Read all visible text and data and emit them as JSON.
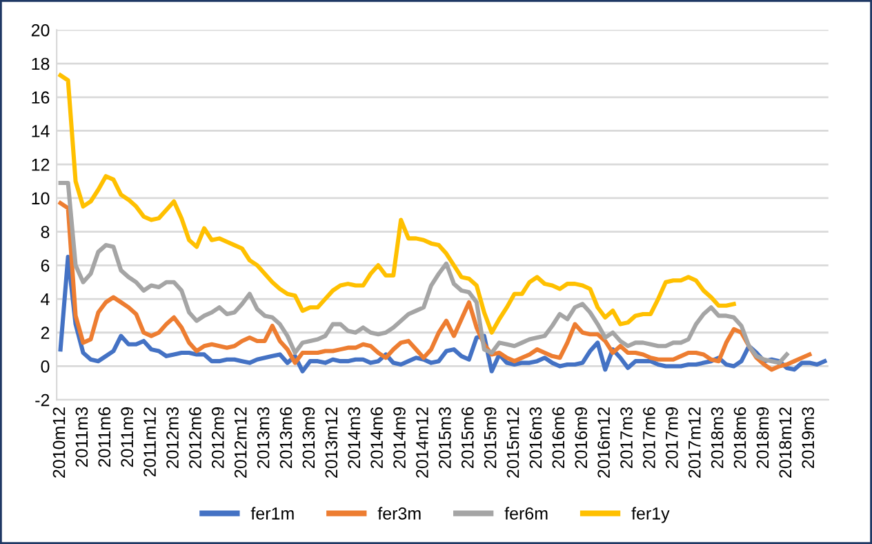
{
  "chart_data": {
    "type": "line",
    "categories": [
      "2010m12",
      null,
      null,
      "2011m3",
      null,
      null,
      "2011m6",
      null,
      null,
      "2011m9",
      null,
      null,
      "2011m12",
      null,
      null,
      "2012m3",
      null,
      null,
      "2012m6",
      null,
      null,
      "2012m9",
      null,
      null,
      "2012m12",
      null,
      null,
      "2013m3",
      null,
      null,
      "2013m6",
      null,
      null,
      "2013m9",
      null,
      null,
      "2013m12",
      null,
      null,
      "2014m3",
      null,
      null,
      "2014m6",
      null,
      null,
      "2014m9",
      null,
      null,
      "2014m12",
      null,
      null,
      "2015m3",
      null,
      null,
      "2015m6",
      null,
      null,
      "2015m9",
      null,
      null,
      "2015m12",
      null,
      null,
      "2016m3",
      null,
      null,
      "2016m6",
      null,
      null,
      "2016m9",
      null,
      null,
      "2016m12",
      null,
      null,
      "2017m3",
      null,
      null,
      "2017m6",
      null,
      null,
      "2017m9",
      null,
      null,
      "2017m12",
      null,
      null,
      "2018m3",
      null,
      null,
      "2018m6",
      null,
      null,
      "2018m9",
      null,
      null,
      "2018m12",
      null,
      null,
      "2019m3",
      null,
      null
    ],
    "series": [
      {
        "name": "fer1m",
        "color": "#4472c4",
        "values": [
          1.0,
          6.5,
          2.5,
          0.8,
          0.4,
          0.3,
          0.6,
          0.9,
          1.8,
          1.3,
          1.3,
          1.5,
          1.0,
          0.9,
          0.6,
          0.7,
          0.8,
          0.8,
          0.7,
          0.7,
          0.3,
          0.3,
          0.4,
          0.4,
          0.3,
          0.2,
          0.4,
          0.5,
          0.6,
          0.7,
          0.2,
          0.6,
          -0.3,
          0.3,
          0.3,
          0.2,
          0.4,
          0.3,
          0.3,
          0.4,
          0.4,
          0.2,
          0.3,
          0.7,
          0.2,
          0.1,
          0.3,
          0.5,
          0.4,
          0.2,
          0.3,
          0.9,
          1.0,
          0.6,
          0.4,
          1.7,
          1.8,
          -0.3,
          0.7,
          0.2,
          0.1,
          0.2,
          0.2,
          0.3,
          0.5,
          0.2,
          0.0,
          0.1,
          0.1,
          0.2,
          0.9,
          1.4,
          -0.2,
          1.0,
          0.5,
          -0.1,
          0.3,
          0.3,
          0.3,
          0.1,
          0.0,
          0.0,
          0.0,
          0.1,
          0.1,
          0.2,
          0.3,
          0.5,
          0.1,
          0.0,
          0.3,
          1.2,
          0.8,
          0.3,
          0.4,
          0.3,
          -0.1,
          -0.2,
          0.2,
          0.2,
          0.1,
          0.3
        ]
      },
      {
        "name": "fer3m",
        "color": "#ed7d31",
        "values": [
          9.7,
          9.4,
          3.0,
          1.4,
          1.6,
          3.2,
          3.8,
          4.1,
          3.8,
          3.5,
          3.1,
          2.0,
          1.8,
          2.0,
          2.5,
          2.9,
          2.3,
          1.4,
          0.9,
          1.2,
          1.3,
          1.2,
          1.1,
          1.2,
          1.5,
          1.7,
          1.5,
          1.5,
          2.4,
          1.5,
          1.0,
          0.2,
          0.8,
          0.8,
          0.8,
          0.9,
          0.9,
          1.0,
          1.1,
          1.1,
          1.3,
          1.2,
          0.8,
          0.5,
          1.0,
          1.4,
          1.5,
          1.0,
          0.5,
          1.0,
          2.0,
          2.7,
          1.8,
          2.8,
          3.8,
          2.3,
          1.3,
          0.7,
          0.8,
          0.5,
          0.3,
          0.5,
          0.7,
          1.0,
          0.8,
          0.6,
          0.5,
          1.4,
          2.5,
          2.0,
          1.9,
          1.9,
          1.5,
          0.8,
          1.2,
          0.8,
          0.8,
          0.7,
          0.5,
          0.4,
          0.4,
          0.4,
          0.6,
          0.8,
          0.8,
          0.7,
          0.4,
          0.3,
          1.4,
          2.2,
          2.0,
          1.2,
          0.5,
          0.1,
          -0.2,
          0.0,
          0.1,
          0.3,
          0.5,
          0.7,
          null,
          null
        ]
      },
      {
        "name": "fer6m",
        "color": "#a5a5a5",
        "values": [
          10.9,
          10.9,
          6.0,
          5.0,
          5.5,
          6.8,
          7.2,
          7.1,
          5.7,
          5.3,
          5.0,
          4.5,
          4.8,
          4.7,
          5.0,
          5.0,
          4.5,
          3.2,
          2.7,
          3.0,
          3.2,
          3.5,
          3.1,
          3.2,
          3.7,
          4.3,
          3.4,
          3.0,
          2.9,
          2.5,
          1.8,
          0.8,
          1.4,
          1.5,
          1.6,
          1.8,
          2.5,
          2.5,
          2.1,
          2.0,
          2.3,
          2.0,
          1.9,
          2.0,
          2.3,
          2.7,
          3.1,
          3.3,
          3.5,
          4.8,
          5.5,
          6.1,
          4.9,
          4.5,
          4.4,
          3.8,
          1.0,
          0.8,
          1.4,
          1.3,
          1.2,
          1.4,
          1.6,
          1.7,
          1.8,
          2.4,
          3.1,
          2.8,
          3.5,
          3.7,
          3.2,
          2.5,
          1.7,
          2.0,
          1.5,
          1.2,
          1.4,
          1.4,
          1.3,
          1.2,
          1.2,
          1.4,
          1.4,
          1.6,
          2.5,
          3.1,
          3.5,
          3.0,
          3.0,
          2.9,
          2.4,
          1.2,
          0.6,
          0.4,
          0.3,
          0.2,
          0.7,
          null,
          null,
          null,
          null,
          null
        ]
      },
      {
        "name": "fer1y",
        "color": "#ffc000",
        "values": [
          17.3,
          17.0,
          11.0,
          9.5,
          9.8,
          10.5,
          11.3,
          11.1,
          10.2,
          9.9,
          9.5,
          8.9,
          8.7,
          8.8,
          9.3,
          9.8,
          8.8,
          7.5,
          7.1,
          8.2,
          7.5,
          7.6,
          7.4,
          7.2,
          7.0,
          6.3,
          6.0,
          5.5,
          5.0,
          4.6,
          4.3,
          4.2,
          3.3,
          3.5,
          3.5,
          4.0,
          4.5,
          4.8,
          4.9,
          4.8,
          4.8,
          5.5,
          6.0,
          5.4,
          5.4,
          8.7,
          7.6,
          7.6,
          7.5,
          7.3,
          7.2,
          6.7,
          6.0,
          5.3,
          5.2,
          4.8,
          3.2,
          2.0,
          2.8,
          3.5,
          4.3,
          4.3,
          5.0,
          5.3,
          4.9,
          4.8,
          4.6,
          4.9,
          4.9,
          4.8,
          4.6,
          3.5,
          2.9,
          3.3,
          2.5,
          2.6,
          3.0,
          3.1,
          3.1,
          4.0,
          5.0,
          5.1,
          5.1,
          5.3,
          5.1,
          4.5,
          4.1,
          3.6,
          3.6,
          3.7,
          null,
          null,
          null,
          null,
          null,
          null,
          null,
          null,
          null,
          null,
          null,
          null
        ]
      }
    ],
    "ylim": [
      -2,
      20
    ],
    "yticks": [
      -2,
      0,
      2,
      4,
      6,
      8,
      10,
      12,
      14,
      16,
      18,
      20
    ],
    "grid": "y",
    "legend": "bottom",
    "marker": "none",
    "line_style": "solid"
  }
}
